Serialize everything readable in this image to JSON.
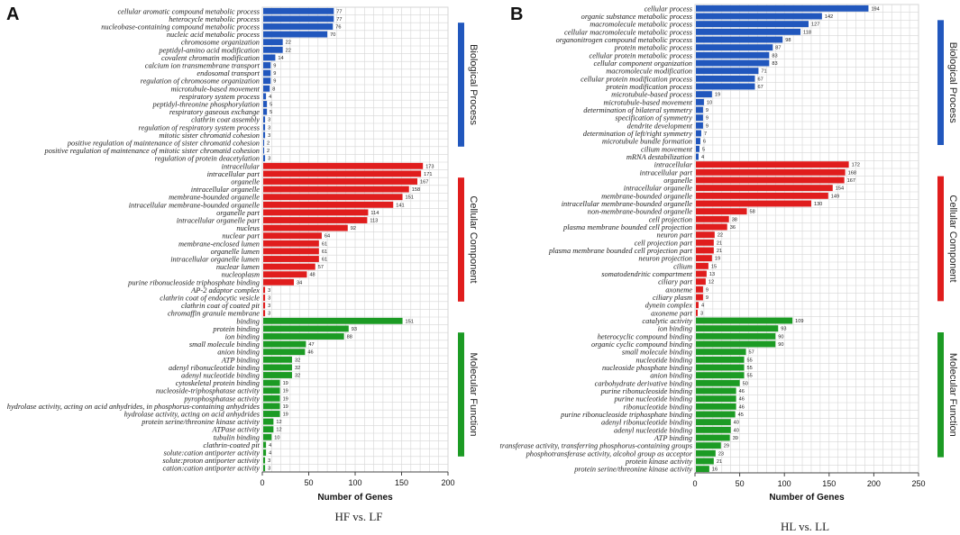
{
  "colors": {
    "Biological Process": "#2157bd",
    "Cellular Component": "#e01d1d",
    "Molecular Function": "#1c9b24",
    "grid": "#d6d6d6",
    "axis": "#444444"
  },
  "chart_data": [
    {
      "type": "bar",
      "orientation": "horizontal",
      "panel": "A",
      "title": "HF vs. LF",
      "xlabel": "Number of Genes",
      "xlim": [
        0,
        200
      ],
      "xticks": [
        0,
        50,
        100,
        150,
        200
      ],
      "legend": [
        "Biological Process",
        "Cellular Component",
        "Molecular Function"
      ],
      "categories": [
        "cellular aromatic compound metabolic process",
        "heterocycle metabolic process",
        "nucleobase-containing compound metabolic process",
        "nucleic acid metabolic process",
        "chromosome organization",
        "peptidyl-amino acid modification",
        "covalent chromatin modification",
        "calcium ion transmembrane transport",
        "endosomal transport",
        "regulation of chromosome organization",
        "microtubule-based movement",
        "respiratory system process",
        "peptidyl-threonine phosphorylation",
        "respiratory gaseous exchange",
        "clathrin coat assembly",
        "regulation of respiratory system process",
        "mitotic sister chromatid cohesion",
        "positive regulation of maintenance of sister chromatid cohesion",
        "positive regulation of maintenance of mitotic sister chromatid cohesion",
        "regulation of protein deacetylation",
        "intracellular",
        "intracellular part",
        "organelle",
        "intracellular organelle",
        "membrane-bounded organelle",
        "intracellular membrane-bounded organelle",
        "organelle part",
        "intracellular organelle part",
        "nucleus",
        "nuclear part",
        "membrane-enclosed lumen",
        "organelle lumen",
        "intracellular organelle lumen",
        "nuclear lumen",
        "nucleoplasm",
        "purine ribonucleoside triphosphate binding",
        "AP-2 adaptor complex",
        "clathrin coat of endocytic vesicle",
        "clathrin coat of coated pit",
        "chromaffin granule membrane",
        "binding",
        "protein binding",
        "ion binding",
        "small molecule binding",
        "anion binding",
        "ATP binding",
        "adenyl ribonucleotide binding",
        "adenyl nucleotide binding",
        "cytoskeletal protein binding",
        "nucleoside-triphosphatase activity",
        "pyrophosphatase activity",
        "hydrolase activity, acting on acid anhydrides, in phosphorus-containing anhydrides",
        "hydrolase activity, acting on acid anhydrides",
        "protein serine/threonine kinase activity",
        "ATPase activity",
        "tubulin binding",
        "clathrin-coated pit",
        "solute:cation antiporter activity",
        "solute:proton antiporter activity",
        "cation:cation antiporter activity"
      ],
      "values": [
        77,
        77,
        76,
        70,
        22,
        22,
        14,
        9,
        9,
        9,
        8,
        4,
        5,
        5,
        3,
        3,
        3,
        2,
        2,
        3,
        173,
        171,
        167,
        158,
        151,
        141,
        114,
        113,
        92,
        64,
        61,
        61,
        61,
        57,
        48,
        34,
        3,
        3,
        3,
        3,
        151,
        93,
        88,
        47,
        46,
        32,
        32,
        32,
        19,
        19,
        19,
        19,
        19,
        12,
        12,
        10,
        4,
        4,
        3,
        3
      ],
      "groups": [
        "Biological Process",
        "Biological Process",
        "Biological Process",
        "Biological Process",
        "Biological Process",
        "Biological Process",
        "Biological Process",
        "Biological Process",
        "Biological Process",
        "Biological Process",
        "Biological Process",
        "Biological Process",
        "Biological Process",
        "Biological Process",
        "Biological Process",
        "Biological Process",
        "Biological Process",
        "Biological Process",
        "Biological Process",
        "Biological Process",
        "Cellular Component",
        "Cellular Component",
        "Cellular Component",
        "Cellular Component",
        "Cellular Component",
        "Cellular Component",
        "Cellular Component",
        "Cellular Component",
        "Cellular Component",
        "Cellular Component",
        "Cellular Component",
        "Cellular Component",
        "Cellular Component",
        "Cellular Component",
        "Cellular Component",
        "Cellular Component",
        "Cellular Component",
        "Cellular Component",
        "Cellular Component",
        "Cellular Component",
        "Molecular Function",
        "Molecular Function",
        "Molecular Function",
        "Molecular Function",
        "Molecular Function",
        "Molecular Function",
        "Molecular Function",
        "Molecular Function",
        "Molecular Function",
        "Molecular Function",
        "Molecular Function",
        "Molecular Function",
        "Molecular Function",
        "Molecular Function",
        "Molecular Function",
        "Molecular Function",
        "Molecular Function",
        "Molecular Function",
        "Molecular Function",
        "Molecular Function"
      ]
    },
    {
      "type": "bar",
      "orientation": "horizontal",
      "panel": "B",
      "title": "HL vs. LL",
      "xlabel": "Number of Genes",
      "xlim": [
        0,
        250
      ],
      "xticks": [
        0,
        50,
        100,
        150,
        200,
        250
      ],
      "legend": [
        "Biological Process",
        "Cellular Component",
        "Molecular Function"
      ],
      "categories": [
        "cellular process",
        "organic substance metabolic process",
        "macromolecule metabolic process",
        "cellular macromolecule metabolic process",
        "organonitrogen compound metabolic process",
        "protein metabolic process",
        "cellular protein metabolic process",
        "cellular component organization",
        "macromolecule modification",
        "cellular protein modification process",
        "protein modification process",
        "microtubule-based process",
        "microtubule-based movement",
        "determination of bilateral symmetry",
        "specification of symmetry",
        "dendrite development",
        "determination of left/right symmetry",
        "microtubule bundle formation",
        "cilium movement",
        "mRNA destabilization",
        "intracellular",
        "intracellular part",
        "organelle",
        "intracellular organelle",
        "membrane-bounded organelle",
        "intracellular membrane-bounded organelle",
        "non-membrane-bounded organelle",
        "cell projection",
        "plasma membrane bounded cell projection",
        "neuron part",
        "cell projection part",
        "plasma membrane bounded cell projection part",
        "neuron projection",
        "cilium",
        "somatodendritic compartment",
        "ciliary part",
        "axoneme",
        "ciliary plasm",
        "dynein complex",
        "axoneme part",
        "catalytic activity",
        "ion binding",
        "heterocyclic compound binding",
        "organic cyclic compound binding",
        "small molecule binding",
        "nucleotide binding",
        "nucleoside phosphate binding",
        "anion binding",
        "carbohydrate derivative binding",
        "purine ribonucleoside binding",
        "purine nucleotide binding",
        "ribonucleotide binding",
        "purine ribonucleoside triphosphate binding",
        "adenyl ribonucleotide binding",
        "adenyl nucleotide binding",
        "ATP binding",
        "transferase activity, transferring phosphorus-containing groups",
        "phosphotransferase activity, alcohol group as acceptor",
        "protein kinase activity",
        "protein serine/threonine kinase activity"
      ],
      "values": [
        194,
        142,
        127,
        118,
        98,
        87,
        83,
        83,
        71,
        67,
        67,
        19,
        10,
        9,
        9,
        9,
        7,
        6,
        5,
        4,
        172,
        168,
        167,
        154,
        149,
        130,
        58,
        38,
        36,
        22,
        21,
        21,
        19,
        15,
        13,
        12,
        9,
        9,
        4,
        3,
        109,
        93,
        90,
        90,
        57,
        55,
        55,
        55,
        50,
        46,
        46,
        46,
        45,
        40,
        40,
        39,
        29,
        23,
        21,
        16
      ],
      "groups": [
        "Biological Process",
        "Biological Process",
        "Biological Process",
        "Biological Process",
        "Biological Process",
        "Biological Process",
        "Biological Process",
        "Biological Process",
        "Biological Process",
        "Biological Process",
        "Biological Process",
        "Biological Process",
        "Biological Process",
        "Biological Process",
        "Biological Process",
        "Biological Process",
        "Biological Process",
        "Biological Process",
        "Biological Process",
        "Biological Process",
        "Cellular Component",
        "Cellular Component",
        "Cellular Component",
        "Cellular Component",
        "Cellular Component",
        "Cellular Component",
        "Cellular Component",
        "Cellular Component",
        "Cellular Component",
        "Cellular Component",
        "Cellular Component",
        "Cellular Component",
        "Cellular Component",
        "Cellular Component",
        "Cellular Component",
        "Cellular Component",
        "Cellular Component",
        "Cellular Component",
        "Cellular Component",
        "Cellular Component",
        "Molecular Function",
        "Molecular Function",
        "Molecular Function",
        "Molecular Function",
        "Molecular Function",
        "Molecular Function",
        "Molecular Function",
        "Molecular Function",
        "Molecular Function",
        "Molecular Function",
        "Molecular Function",
        "Molecular Function",
        "Molecular Function",
        "Molecular Function",
        "Molecular Function",
        "Molecular Function",
        "Molecular Function",
        "Molecular Function",
        "Molecular Function",
        "Molecular Function"
      ]
    }
  ]
}
